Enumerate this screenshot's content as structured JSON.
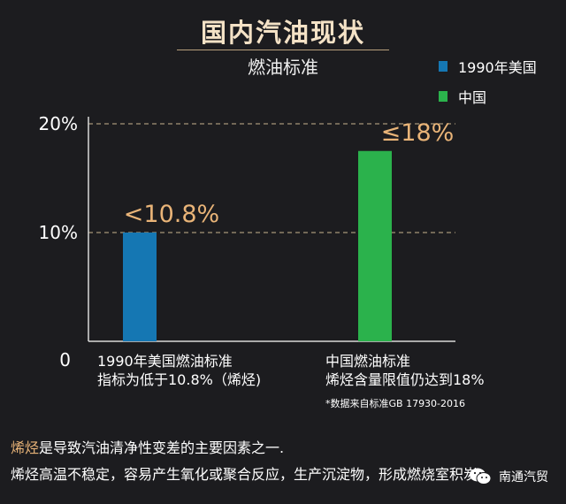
{
  "header": {
    "title": "国内汽油现状",
    "subtitle": "燃油标准"
  },
  "colors": {
    "usa": "#1577b3",
    "china": "#2bb24c",
    "axis": "#d9d9d9",
    "grid": "#c9b48f",
    "title": "#f4e2c6",
    "highlight": "#e9b478"
  },
  "chart_data": {
    "type": "bar",
    "categories": [
      "1990年美国",
      "中国"
    ],
    "series": [
      {
        "name": "1990年美国",
        "values": [
          10.0,
          null
        ]
      },
      {
        "name": "中国",
        "values": [
          null,
          17.5
        ]
      }
    ],
    "values": [
      10.0,
      17.5
    ],
    "ylim": [
      0,
      20
    ],
    "yticks": [
      "0",
      "10%",
      "20%"
    ],
    "ytick_values": [
      0,
      10,
      20
    ],
    "grid": "dashed at 10% and 20%",
    "legend_position": "top-right",
    "data_labels": [
      "<10.8%",
      "≤18%"
    ],
    "category_labels": [
      {
        "line1": "1990年美国燃油标准",
        "line2": "指标为低于10.8%（烯烃)"
      },
      {
        "line1": "中国燃油标准",
        "line2": "烯烃含量限值仍达到18%"
      }
    ],
    "note": "*数据来自标准GB 17930-2016"
  },
  "footer": {
    "line1_highlight": "烯烃",
    "line1_rest": "是导致汽油清净性变差的主要因素之一.",
    "line2": "烯烃高温不稳定，容易产生氧化或聚合反应，生产沉淀物，形成燃烧室积炭"
  },
  "watermark": {
    "text": "南通汽贸",
    "icon": "wechat-icon"
  }
}
